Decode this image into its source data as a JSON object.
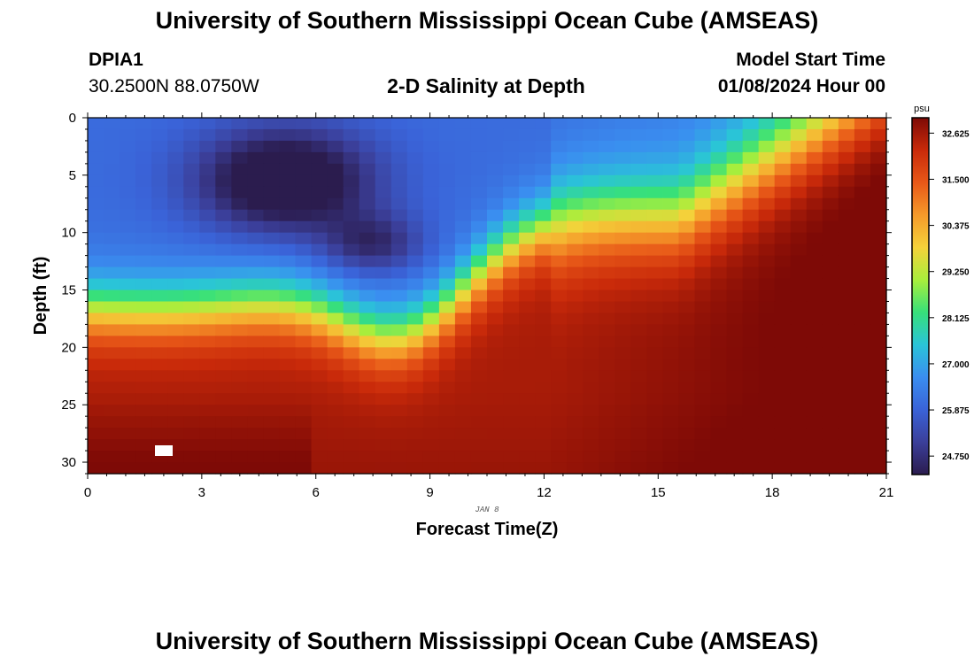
{
  "header": {
    "title": "University of Southern Mississippi Ocean Cube (AMSEAS)",
    "station_id": "DPIA1",
    "coordinates": "30.2500N  88.0750W",
    "plot_title": "2-D Salinity at Depth",
    "model_start_label": "Model Start Time",
    "model_start_value": "01/08/2024 Hour 00"
  },
  "footer": {
    "title": "University of Southern Mississippi Ocean Cube (AMSEAS)"
  },
  "colors": {
    "colormap": [
      "#2b1c4e",
      "#3b3f9a",
      "#3a63d8",
      "#3a8ef0",
      "#2ac4d8",
      "#37e07a",
      "#a8ee3c",
      "#f4d23a",
      "#f59a2a",
      "#e85818",
      "#c92a0a",
      "#7e0a06"
    ]
  },
  "chart_data": {
    "type": "heatmap",
    "title": "2-D Salinity at Depth",
    "xlabel": "Forecast Time(Z)",
    "ylabel": "Depth (ft)",
    "date_annotation": "JAN 8",
    "x_range": [
      0,
      21
    ],
    "y_range": [
      0,
      31
    ],
    "x_ticks": [
      0,
      3,
      6,
      9,
      12,
      15,
      18,
      21
    ],
    "y_ticks": [
      0,
      5,
      10,
      15,
      20,
      25,
      30
    ],
    "colorbar": {
      "unit": "psu",
      "range": [
        24.3,
        33.0
      ],
      "ticks": [
        "32.625",
        "31.500",
        "30.375",
        "29.250",
        "28.125",
        "27.000",
        "25.875",
        "24.750"
      ]
    },
    "grid": false
  }
}
